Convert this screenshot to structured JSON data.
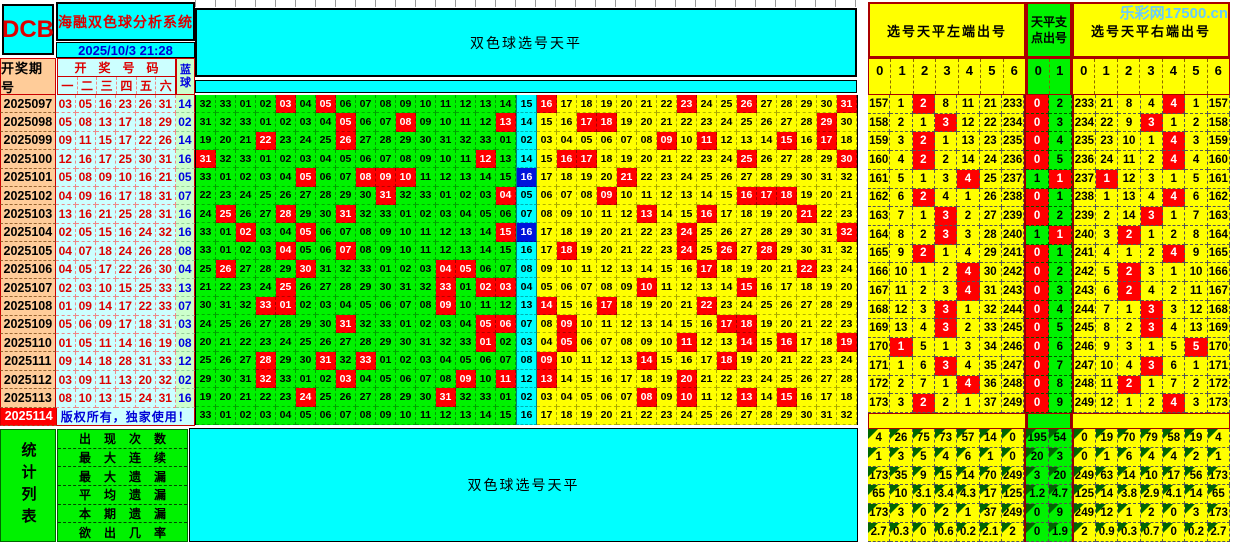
{
  "header": {
    "logo": "DCB",
    "app_title": "海融双色球分析系统",
    "datetime": "2025/10/3 21:28",
    "period_col": "开奖期号",
    "draw_nums_col": "开奖号码",
    "day_cols": [
      "一",
      "二",
      "三",
      "四",
      "五",
      "六"
    ],
    "blue_col": "蓝球"
  },
  "banner": {
    "title_top": "双色球选号天平",
    "title_bottom": "双色球选号天平"
  },
  "watermark": "乐彩网17500.cn",
  "colors": {
    "accent_red": "#ff0000",
    "accent_blue": "#0014dc",
    "green": "#00f200",
    "yellow": "#ffff00",
    "cyan": "#00ffff",
    "pale_cyan": "#ccffff",
    "pale_green": "#ccffcc",
    "peach": "#ffcc99"
  },
  "draws": [
    {
      "period": "2025097",
      "reds": [
        "03",
        "05",
        "16",
        "23",
        "26",
        "31"
      ],
      "blue": "14",
      "start": 32
    },
    {
      "period": "2025098",
      "reds": [
        "05",
        "08",
        "13",
        "17",
        "18",
        "29"
      ],
      "blue": "02",
      "start": 31
    },
    {
      "period": "2025099",
      "reds": [
        "09",
        "11",
        "15",
        "17",
        "22",
        "26"
      ],
      "blue": "14",
      "start": 19
    },
    {
      "period": "2025100",
      "reds": [
        "12",
        "16",
        "17",
        "25",
        "30",
        "31"
      ],
      "blue": "16",
      "start": 31
    },
    {
      "period": "2025101",
      "reds": [
        "05",
        "08",
        "09",
        "10",
        "16",
        "21"
      ],
      "blue": "05",
      "start": 33
    },
    {
      "period": "2025102",
      "reds": [
        "04",
        "09",
        "16",
        "17",
        "18",
        "31"
      ],
      "blue": "07",
      "start": 22
    },
    {
      "period": "2025103",
      "reds": [
        "13",
        "16",
        "21",
        "25",
        "28",
        "31"
      ],
      "blue": "16",
      "start": 24
    },
    {
      "period": "2025104",
      "reds": [
        "02",
        "05",
        "15",
        "16",
        "24",
        "32"
      ],
      "blue": "16",
      "start": 33
    },
    {
      "period": "2025105",
      "reds": [
        "04",
        "07",
        "18",
        "24",
        "26",
        "28"
      ],
      "blue": "08",
      "start": 33
    },
    {
      "period": "2025106",
      "reds": [
        "04",
        "05",
        "17",
        "22",
        "26",
        "30"
      ],
      "blue": "04",
      "start": 25
    },
    {
      "period": "2025107",
      "reds": [
        "02",
        "03",
        "10",
        "15",
        "25",
        "33"
      ],
      "blue": "13",
      "start": 21
    },
    {
      "period": "2025108",
      "reds": [
        "01",
        "09",
        "14",
        "17",
        "22",
        "33"
      ],
      "blue": "07",
      "start": 30
    },
    {
      "period": "2025109",
      "reds": [
        "05",
        "06",
        "09",
        "17",
        "18",
        "31"
      ],
      "blue": "03",
      "start": 24
    },
    {
      "period": "2025110",
      "reds": [
        "01",
        "05",
        "11",
        "14",
        "16",
        "19"
      ],
      "blue": "08",
      "start": 20
    },
    {
      "period": "2025111",
      "reds": [
        "09",
        "14",
        "18",
        "28",
        "31",
        "33"
      ],
      "blue": "12",
      "start": 25
    },
    {
      "period": "2025112",
      "reds": [
        "03",
        "09",
        "11",
        "13",
        "20",
        "32"
      ],
      "blue": "02",
      "start": 29
    },
    {
      "period": "2025113",
      "reds": [
        "08",
        "10",
        "13",
        "15",
        "24",
        "31"
      ],
      "blue": "16",
      "start": 19
    }
  ],
  "next_row": {
    "period": "2025114",
    "note": "版权所有，独家使用！",
    "start": 33
  },
  "balance_panel": {
    "left_title": "选号天平左端出号",
    "pivot_title": "天平支点出号",
    "right_title": "选号天平右端出号",
    "left_cols": [
      "0",
      "1",
      "2",
      "3",
      "4",
      "5",
      "6"
    ],
    "pivot_cols": [
      "0",
      "1"
    ],
    "right_cols": [
      "0",
      "1",
      "2",
      "3",
      "4",
      "5",
      "6"
    ],
    "rows": [
      {
        "left": [
          "157",
          "1",
          "2",
          "8",
          "11",
          "21",
          "233"
        ],
        "left_hot": 2,
        "pivot": [
          "0",
          "2"
        ],
        "pivot_hot": 0,
        "right": [
          "233",
          "21",
          "8",
          "4",
          "4",
          "1",
          "157"
        ],
        "right_hot": 4
      },
      {
        "left": [
          "158",
          "2",
          "1",
          "3",
          "12",
          "22",
          "234"
        ],
        "left_hot": 3,
        "pivot": [
          "0",
          "3"
        ],
        "pivot_hot": 0,
        "right": [
          "234",
          "22",
          "9",
          "3",
          "1",
          "2",
          "158"
        ],
        "right_hot": 3
      },
      {
        "left": [
          "159",
          "3",
          "2",
          "1",
          "13",
          "23",
          "235"
        ],
        "left_hot": 2,
        "pivot": [
          "0",
          "4"
        ],
        "pivot_hot": 0,
        "right": [
          "235",
          "23",
          "10",
          "1",
          "4",
          "3",
          "159"
        ],
        "right_hot": 4
      },
      {
        "left": [
          "160",
          "4",
          "2",
          "2",
          "14",
          "24",
          "236"
        ],
        "left_hot": 2,
        "pivot": [
          "0",
          "5"
        ],
        "pivot_hot": 0,
        "right": [
          "236",
          "24",
          "11",
          "2",
          "4",
          "4",
          "160"
        ],
        "right_hot": 4
      },
      {
        "left": [
          "161",
          "5",
          "1",
          "3",
          "4",
          "25",
          "237"
        ],
        "left_hot": 4,
        "pivot": [
          "1",
          "1"
        ],
        "pivot_hot": 1,
        "right": [
          "237",
          "1",
          "12",
          "3",
          "1",
          "5",
          "161"
        ],
        "right_hot": 1
      },
      {
        "left": [
          "162",
          "6",
          "2",
          "4",
          "1",
          "26",
          "238"
        ],
        "left_hot": 2,
        "pivot": [
          "0",
          "1"
        ],
        "pivot_hot": 0,
        "right": [
          "238",
          "1",
          "13",
          "4",
          "4",
          "6",
          "162"
        ],
        "right_hot": 4
      },
      {
        "left": [
          "163",
          "7",
          "1",
          "3",
          "2",
          "27",
          "239"
        ],
        "left_hot": 3,
        "pivot": [
          "0",
          "2"
        ],
        "pivot_hot": 0,
        "right": [
          "239",
          "2",
          "14",
          "3",
          "1",
          "7",
          "163"
        ],
        "right_hot": 3
      },
      {
        "left": [
          "164",
          "8",
          "2",
          "3",
          "3",
          "28",
          "240"
        ],
        "left_hot": 3,
        "pivot": [
          "1",
          "1"
        ],
        "pivot_hot": 1,
        "right": [
          "240",
          "3",
          "2",
          "1",
          "2",
          "8",
          "164"
        ],
        "right_hot": 2
      },
      {
        "left": [
          "165",
          "9",
          "2",
          "1",
          "4",
          "29",
          "241"
        ],
        "left_hot": 2,
        "pivot": [
          "0",
          "1"
        ],
        "pivot_hot": 0,
        "right": [
          "241",
          "4",
          "1",
          "2",
          "4",
          "9",
          "165"
        ],
        "right_hot": 4
      },
      {
        "left": [
          "166",
          "10",
          "1",
          "2",
          "4",
          "30",
          "242"
        ],
        "left_hot": 4,
        "pivot": [
          "0",
          "2"
        ],
        "pivot_hot": 0,
        "right": [
          "242",
          "5",
          "2",
          "3",
          "1",
          "10",
          "166"
        ],
        "right_hot": 2
      },
      {
        "left": [
          "167",
          "11",
          "2",
          "3",
          "4",
          "31",
          "243"
        ],
        "left_hot": 4,
        "pivot": [
          "0",
          "3"
        ],
        "pivot_hot": 0,
        "right": [
          "243",
          "6",
          "2",
          "4",
          "2",
          "11",
          "167"
        ],
        "right_hot": 2
      },
      {
        "left": [
          "168",
          "12",
          "3",
          "3",
          "1",
          "32",
          "244"
        ],
        "left_hot": 3,
        "pivot": [
          "0",
          "4"
        ],
        "pivot_hot": 0,
        "right": [
          "244",
          "7",
          "1",
          "3",
          "3",
          "12",
          "168"
        ],
        "right_hot": 3
      },
      {
        "left": [
          "169",
          "13",
          "4",
          "3",
          "2",
          "33",
          "245"
        ],
        "left_hot": 3,
        "pivot": [
          "0",
          "5"
        ],
        "pivot_hot": 0,
        "right": [
          "245",
          "8",
          "2",
          "3",
          "4",
          "13",
          "169"
        ],
        "right_hot": 3
      },
      {
        "left": [
          "170",
          "1",
          "5",
          "1",
          "3",
          "34",
          "246"
        ],
        "left_hot": 1,
        "pivot": [
          "0",
          "6"
        ],
        "pivot_hot": 0,
        "right": [
          "246",
          "9",
          "3",
          "1",
          "5",
          "5",
          "170"
        ],
        "right_hot": 5
      },
      {
        "left": [
          "171",
          "1",
          "6",
          "3",
          "4",
          "35",
          "247"
        ],
        "left_hot": 3,
        "pivot": [
          "0",
          "7"
        ],
        "pivot_hot": 0,
        "right": [
          "247",
          "10",
          "4",
          "3",
          "6",
          "1",
          "171"
        ],
        "right_hot": 3
      },
      {
        "left": [
          "172",
          "2",
          "7",
          "1",
          "4",
          "36",
          "248"
        ],
        "left_hot": 4,
        "pivot": [
          "0",
          "8"
        ],
        "pivot_hot": 0,
        "right": [
          "248",
          "11",
          "2",
          "1",
          "7",
          "2",
          "172"
        ],
        "right_hot": 2
      },
      {
        "left": [
          "173",
          "3",
          "2",
          "2",
          "1",
          "37",
          "249"
        ],
        "left_hot": 2,
        "pivot": [
          "0",
          "9"
        ],
        "pivot_hot": 0,
        "right": [
          "249",
          "12",
          "1",
          "2",
          "4",
          "3",
          "173"
        ],
        "right_hot": 4
      }
    ]
  },
  "stats": {
    "sidebar": "统计列表",
    "labels": [
      "出现次数",
      "最大连续",
      "最大遗漏",
      "平均遗漏",
      "本期遗漏",
      "欲出几率"
    ],
    "left": [
      [
        "4",
        "26",
        "75",
        "73",
        "57",
        "14",
        "0"
      ],
      [
        "1",
        "3",
        "5",
        "4",
        "6",
        "1",
        "0"
      ],
      [
        "173",
        "35",
        "9",
        "15",
        "14",
        "70",
        "249"
      ],
      [
        "65",
        "10",
        "3.1",
        "3.4",
        "4.3",
        "17",
        "125"
      ],
      [
        "173",
        "3",
        "0",
        "2",
        "1",
        "37",
        "249"
      ],
      [
        "2.7",
        "0.3",
        "0",
        "0.6",
        "0.2",
        "2.1",
        "2"
      ]
    ],
    "pivot": [
      [
        "195",
        "54"
      ],
      [
        "20",
        "3"
      ],
      [
        "3",
        "20"
      ],
      [
        "1.2",
        "4.7"
      ],
      [
        "0",
        "9"
      ],
      [
        "0",
        "1.9"
      ]
    ],
    "right": [
      [
        "0",
        "19",
        "70",
        "79",
        "58",
        "19",
        "4"
      ],
      [
        "0",
        "1",
        "6",
        "4",
        "4",
        "2",
        "1"
      ],
      [
        "249",
        "63",
        "14",
        "10",
        "17",
        "56",
        "173"
      ],
      [
        "125",
        "14",
        "3.8",
        "2.9",
        "4.1",
        "14",
        "65"
      ],
      [
        "249",
        "12",
        "1",
        "2",
        "0",
        "3",
        "173"
      ],
      [
        "2",
        "0.9",
        "0.3",
        "0.7",
        "0",
        "0.2",
        "2.7"
      ]
    ]
  }
}
